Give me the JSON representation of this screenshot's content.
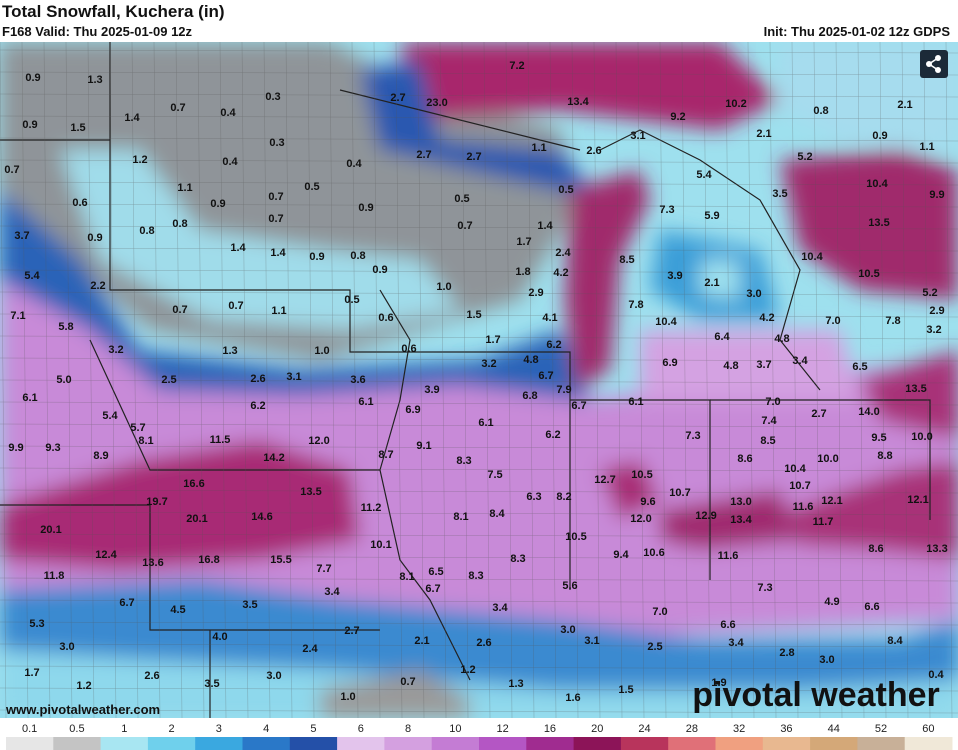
{
  "header": {
    "title": "Total Snowfall, Kuchera (in)",
    "valid": "F168 Valid: Thu 2025-01-09 12z",
    "init": "Init: Thu 2025-01-02 12z GDPS"
  },
  "footer": {
    "url": "www.pivotalweather.com",
    "brand": "pivotal weather"
  },
  "colorbar": {
    "ticks": [
      "0.1",
      "0.5",
      "1",
      "2",
      "3",
      "4",
      "5",
      "6",
      "8",
      "10",
      "12",
      "16",
      "20",
      "24",
      "28",
      "32",
      "36",
      "44",
      "52",
      "60"
    ],
    "colors": [
      "#e6e6e6",
      "#c4c4c4",
      "#a8e6f2",
      "#6fd0ec",
      "#3aa8e0",
      "#2a78c8",
      "#2450a8",
      "#e3c4ec",
      "#d4a0e0",
      "#c47cd4",
      "#b456c4",
      "#a02c90",
      "#8c1458",
      "#b8345c",
      "#e07078",
      "#f0a080",
      "#e8b890",
      "#d4a878",
      "#c8b098",
      "#f0e8d8"
    ]
  },
  "snowfall_labels": [
    "0.9",
    "1.3",
    "0.7",
    "0.4",
    "0.3",
    "0.3",
    "0.4",
    "1.4",
    "1.5",
    "0.9",
    "1.2",
    "0.7",
    "1.1",
    "0.9",
    "0.7",
    "0.5",
    "0.7",
    "0.4",
    "0.9",
    "0.6",
    "0.8",
    "0.8",
    "0.9",
    "3.7",
    "1.4",
    "1.4",
    "0.9",
    "0.8",
    "0.9",
    "5.4",
    "2.2",
    "0.7",
    "0.7",
    "1.1",
    "0.5",
    "0.6",
    "1.0",
    "0.5",
    "0.7",
    "1.7",
    "1.4",
    "2.4",
    "1.8",
    "4.2",
    "2.9",
    "1.5",
    "1.7",
    "4.1",
    "7.1",
    "5.8",
    "3.2",
    "1.3",
    "1.0",
    "0.6",
    "3.2",
    "4.8",
    "6.2",
    "5.0",
    "2.5",
    "2.6",
    "3.1",
    "3.6",
    "3.9",
    "6.7",
    "7.9",
    "6.8",
    "6.7",
    "6.1",
    "6.2",
    "6.1",
    "6.9",
    "5.4",
    "5.7",
    "6.1",
    "9.9",
    "9.3",
    "8.1",
    "11.5",
    "12.0",
    "9.1",
    "6.2",
    "8.9",
    "14.2",
    "8.7",
    "8.3",
    "7.5",
    "16.6",
    "13.5",
    "6.3",
    "8.2",
    "19.7",
    "20.1",
    "14.6",
    "11.2",
    "8.1",
    "8.4",
    "20.1",
    "10.1",
    "10.5",
    "12.4",
    "13.6",
    "16.8",
    "15.5",
    "7.7",
    "8.3",
    "11.8",
    "8.1",
    "6.5",
    "8.3",
    "6.7",
    "5.6",
    "6.7",
    "4.5",
    "3.5",
    "3.4",
    "3.4",
    "5.3",
    "4.0",
    "2.7",
    "3.0",
    "3.0",
    "2.4",
    "2.1",
    "2.6",
    "3.1",
    "1.7",
    "2.6",
    "3.0",
    "1.2",
    "1.2",
    "3.5",
    "0.7",
    "1.3",
    "1.0",
    "1.6",
    "1.5",
    "7.2",
    "23.0",
    "2.7",
    "13.4",
    "9.2",
    "10.2",
    "0.8",
    "2.1",
    "0.9",
    "1.1",
    "3.1",
    "2.1",
    "1.1",
    "2.6",
    "2.7",
    "2.7",
    "5.2",
    "0.5",
    "5.4",
    "3.5",
    "10.4",
    "9.9",
    "7.3",
    "5.9",
    "13.5",
    "8.5",
    "3.9",
    "10.4",
    "10.5",
    "2.1",
    "3.0",
    "5.2",
    "2.9",
    "7.8",
    "4.2",
    "7.0",
    "7.8",
    "3.2",
    "10.4",
    "6.4",
    "4.8",
    "6.9",
    "4.8",
    "3.7",
    "3.4",
    "6.5",
    "13.5",
    "6.1",
    "7.0",
    "2.7",
    "14.0",
    "7.4",
    "7.3",
    "8.5",
    "9.5",
    "10.0",
    "8.8",
    "8.6",
    "10.0",
    "10.4",
    "12.7",
    "10.5",
    "10.7",
    "10.7",
    "9.6",
    "12.1",
    "12.1",
    "13.0",
    "11.6",
    "12.0",
    "12.9",
    "13.4",
    "11.7",
    "9.4",
    "10.6",
    "11.6",
    "8.6",
    "13.3",
    "7.3",
    "4.9",
    "7.0",
    "6.6",
    "6.6",
    "2.5",
    "3.4",
    "2.8",
    "8.4",
    "3.0",
    "1.9",
    "0.4"
  ]
}
